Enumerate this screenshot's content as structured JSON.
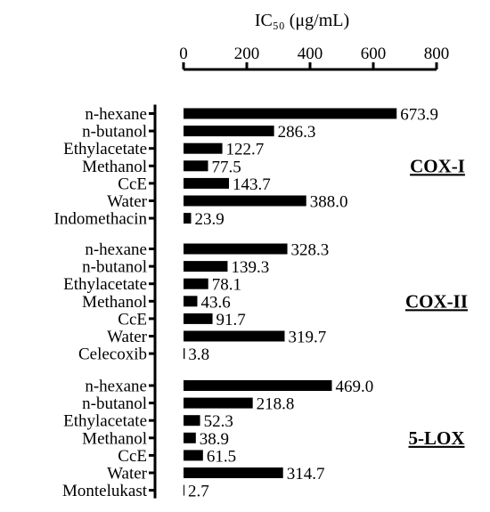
{
  "chart_data": {
    "type": "bar",
    "orientation": "horizontal",
    "x_axis_position": "top",
    "xlabel": "IC₅₀ (μg/mL)",
    "xlim": [
      0,
      800
    ],
    "xticks": [
      0,
      200,
      400,
      600,
      800
    ],
    "grid": false,
    "bar_color": "#000000",
    "groups": [
      {
        "name": "COX-I",
        "categories": [
          "n-hexane",
          "n-butanol",
          "Ethylacetate",
          "Methanol",
          "CcE",
          "Water",
          "Indomethacin"
        ],
        "values": [
          673.9,
          286.3,
          122.7,
          77.5,
          143.7,
          388.0,
          23.9
        ],
        "value_labels": [
          "673.9",
          "286.3",
          "122.7",
          "77.5",
          "143.7",
          "388.0",
          "23.9"
        ]
      },
      {
        "name": "COX-II",
        "categories": [
          "n-hexane",
          "n-butanol",
          "Ethylacetate",
          "Methanol",
          "CcE",
          "Water",
          "Celecoxib"
        ],
        "values": [
          328.3,
          139.3,
          78.1,
          43.6,
          91.7,
          319.7,
          3.8
        ],
        "value_labels": [
          "328.3",
          "139.3",
          "78.1",
          "43.6",
          "91.7",
          "319.7",
          "3.8"
        ]
      },
      {
        "name": "5-LOX",
        "categories": [
          "n-hexane",
          "n-butanol",
          "Ethylacetate",
          "Methanol",
          "CcE",
          "Water",
          "Montelukast"
        ],
        "values": [
          469.0,
          218.8,
          52.3,
          38.9,
          61.5,
          314.7,
          2.7
        ],
        "value_labels": [
          "469.0",
          "218.8",
          "52.3",
          "38.9",
          "61.5",
          "314.7",
          "2.7"
        ]
      }
    ]
  }
}
